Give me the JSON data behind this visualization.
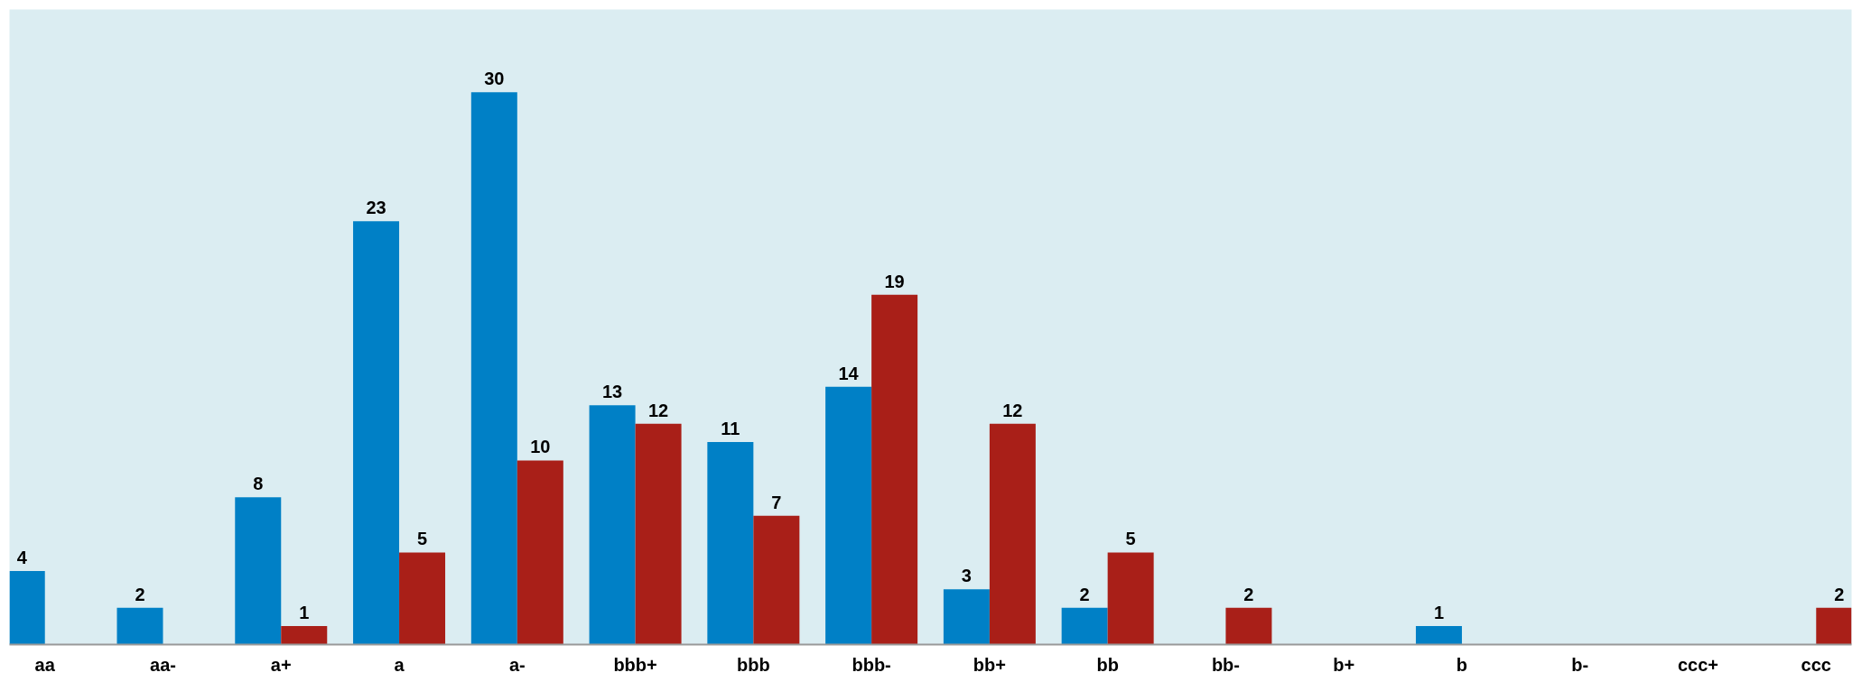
{
  "chart_data": {
    "type": "bar",
    "categories": [
      "aa",
      "aa-",
      "a+",
      "a",
      "a-",
      "bbb+",
      "bbb",
      "bbb-",
      "bb+",
      "bb",
      "bb-",
      "b+",
      "b",
      "b-",
      "ccc+",
      "ccc"
    ],
    "series": [
      {
        "color": "#0080c6",
        "values": [
          4,
          2,
          8,
          23,
          30,
          13,
          11,
          14,
          3,
          2,
          null,
          null,
          1,
          null,
          null,
          null
        ]
      },
      {
        "color": "#a91f18",
        "values": [
          null,
          null,
          1,
          5,
          10,
          12,
          7,
          19,
          12,
          5,
          2,
          null,
          null,
          null,
          null,
          2
        ]
      }
    ],
    "data_labels": true,
    "grid": false,
    "tick_labels": "x"
  }
}
